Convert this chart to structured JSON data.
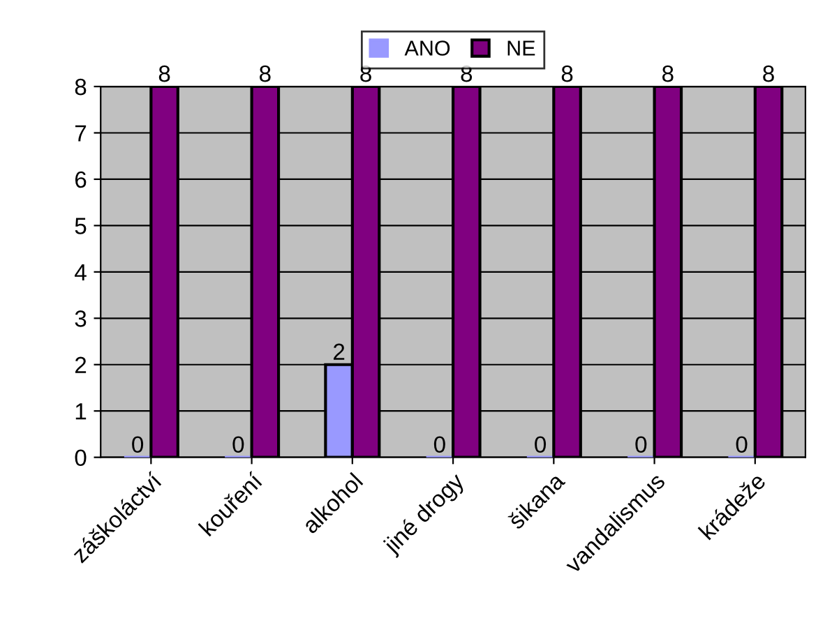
{
  "chart_data": {
    "type": "bar",
    "categories": [
      "záškoláctví",
      "kouření",
      "alkohol",
      "jiné drogy",
      "šikana",
      "vandalismus",
      "krádeže"
    ],
    "series": [
      {
        "name": "ANO",
        "color": "#9999ff",
        "values": [
          0,
          0,
          2,
          0,
          0,
          0,
          0
        ]
      },
      {
        "name": "NE",
        "color": "#800080",
        "values": [
          8,
          8,
          8,
          8,
          8,
          8,
          8
        ]
      }
    ],
    "ylim": [
      0,
      8
    ],
    "yticks": [
      0,
      1,
      2,
      3,
      4,
      5,
      6,
      7,
      8
    ],
    "grid": "y",
    "legend": "top",
    "data_labels": true
  }
}
